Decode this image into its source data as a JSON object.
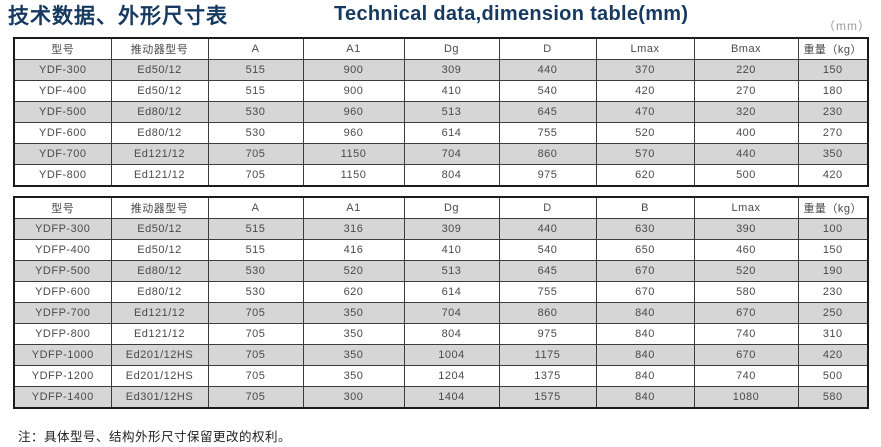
{
  "header": {
    "title_zh": "技术数据、外形尺寸表",
    "title_en": "Technical data,dimension table(mm)",
    "unit_label": "（mm）"
  },
  "footnote": "注：具体型号、结构外形尺寸保留更改的权利。",
  "colors": {
    "title": "#16395f",
    "alt_row": "#d6d6d6",
    "border": "#3c3c3c",
    "cell_text": "#4a4a4a"
  },
  "chart_data": [
    {
      "type": "table",
      "name": "YDF series dimensions",
      "headers": [
        "型号",
        "推动器型号",
        "A",
        "A1",
        "Dg",
        "D",
        "Lmax",
        "Bmax",
        "重量（kg）"
      ],
      "rows": [
        [
          "YDF-300",
          "Ed50/12",
          "515",
          "900",
          "309",
          "440",
          "370",
          "220",
          "150"
        ],
        [
          "YDF-400",
          "Ed50/12",
          "515",
          "900",
          "410",
          "540",
          "420",
          "270",
          "180"
        ],
        [
          "YDF-500",
          "Ed80/12",
          "530",
          "960",
          "513",
          "645",
          "470",
          "320",
          "230"
        ],
        [
          "YDF-600",
          "Ed80/12",
          "530",
          "960",
          "614",
          "755",
          "520",
          "400",
          "270"
        ],
        [
          "YDF-700",
          "Ed121/12",
          "705",
          "1150",
          "704",
          "860",
          "570",
          "440",
          "350"
        ],
        [
          "YDF-800",
          "Ed121/12",
          "705",
          "1150",
          "804",
          "975",
          "620",
          "500",
          "420"
        ]
      ]
    },
    {
      "type": "table",
      "name": "YDFP series dimensions",
      "headers": [
        "型号",
        "推动器型号",
        "A",
        "A1",
        "Dg",
        "D",
        "B",
        "Lmax",
        "重量（kg）"
      ],
      "rows": [
        [
          "YDFP-300",
          "Ed50/12",
          "515",
          "316",
          "309",
          "440",
          "630",
          "390",
          "100"
        ],
        [
          "YDFP-400",
          "Ed50/12",
          "515",
          "416",
          "410",
          "540",
          "650",
          "460",
          "150"
        ],
        [
          "YDFP-500",
          "Ed80/12",
          "530",
          "520",
          "513",
          "645",
          "670",
          "520",
          "190"
        ],
        [
          "YDFP-600",
          "Ed80/12",
          "530",
          "620",
          "614",
          "755",
          "670",
          "580",
          "230"
        ],
        [
          "YDFP-700",
          "Ed121/12",
          "705",
          "350",
          "704",
          "860",
          "840",
          "670",
          "250"
        ],
        [
          "YDFP-800",
          "Ed121/12",
          "705",
          "350",
          "804",
          "975",
          "840",
          "740",
          "310"
        ],
        [
          "YDFP-1000",
          "Ed201/12HS",
          "705",
          "350",
          "1004",
          "1175",
          "840",
          "670",
          "420"
        ],
        [
          "YDFP-1200",
          "Ed201/12HS",
          "705",
          "350",
          "1204",
          "1375",
          "840",
          "740",
          "500"
        ],
        [
          "YDFP-1400",
          "Ed301/12HS",
          "705",
          "300",
          "1404",
          "1575",
          "840",
          "1080",
          "580"
        ]
      ]
    }
  ]
}
